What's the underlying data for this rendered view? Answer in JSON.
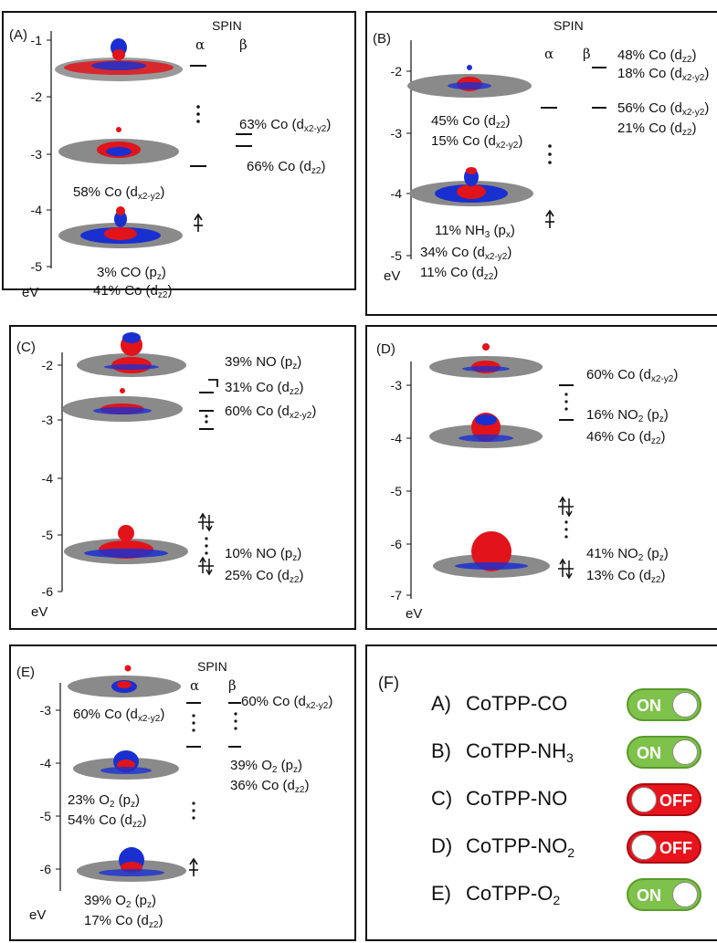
{
  "panels": {
    "A": {
      "label": "(A)",
      "spin": "SPIN",
      "alpha": "α",
      "beta": "β",
      "unit": "eV",
      "ticks": [
        "-1",
        "-2",
        "-3",
        "-4",
        "-5"
      ],
      "ann1": "63% Co (d<sub>x2-y2</sub>)",
      "ann2": "66% Co (d<sub>z2</sub>)",
      "ann3": "58% Co (d<sub>x2-y2</sub>)",
      "ann4": "3% CO (p<sub>z</sub>)",
      "ann5": "41% Co (d<sub>z2</sub>)"
    },
    "B": {
      "label": "(B)",
      "spin": "SPIN",
      "alpha": "α",
      "beta": "β",
      "unit": "eV",
      "ticks": [
        "-2",
        "-3",
        "-4",
        "-5"
      ],
      "ann1": "48% Co (d<sub>z2</sub>)",
      "ann2": "18% Co (d<sub>x2-y2</sub>)",
      "ann3": "56% Co (d<sub>x2-y2</sub>)",
      "ann4": "21% Co (d<sub>z2</sub>)",
      "ann5": "45% Co (d<sub>z2</sub>)",
      "ann6": "15% Co (d<sub>x2-y2</sub>)",
      "ann7": "11% NH<sub>3</sub> (p<sub>x</sub>)",
      "ann8": "34% Co (d<sub>x2-y2</sub>)",
      "ann9": "11% Co (d<sub>z2</sub>)"
    },
    "C": {
      "label": "(C)",
      "unit": "eV",
      "ticks": [
        "-2",
        "-3",
        "-4",
        "-5",
        "-6"
      ],
      "ann1": "39% NO (p<sub>z</sub>)",
      "ann2": "31% Co (d<sub>z2</sub>)",
      "ann3": "60% Co (d<sub>x2-y2</sub>)",
      "ann4": "10% NO (p<sub>z</sub>)",
      "ann5": "25% Co (d<sub>z2</sub>)"
    },
    "D": {
      "label": "(D)",
      "unit": "eV",
      "ticks": [
        "-3",
        "-4",
        "-5",
        "-6",
        "-7"
      ],
      "ann1": "60% Co (d<sub>x2-y2</sub>)",
      "ann2": "16% NO<sub>2</sub> (p<sub>z</sub>)",
      "ann3": "46% Co (d<sub>z2</sub>)",
      "ann4": "41% NO<sub>2</sub> (p<sub>z</sub>)",
      "ann5": "13% Co (d<sub>z2</sub>)"
    },
    "E": {
      "label": "(E)",
      "spin": "SPIN",
      "alpha": "α",
      "beta": "β",
      "unit": "eV",
      "ticks": [
        "-3",
        "-4",
        "-5",
        "-6"
      ],
      "ann1": "60% Co (d<sub>x2-y2</sub>)",
      "ann2": "60% Co (d<sub>x2-y2</sub>)",
      "ann3": "39% O<sub>2</sub> (p<sub>z</sub>)",
      "ann4": "36% Co (d<sub>z2</sub>)",
      "ann5": "23% O<sub>2</sub> (p<sub>z</sub>)",
      "ann6": "54% Co (d<sub>z2</sub>)",
      "ann7": "39% O<sub>2</sub> (p<sub>z</sub>)",
      "ann8": "17% Co (d<sub>z2</sub>)"
    },
    "F": {
      "label": "(F)",
      "rows": [
        {
          "letter": "A)",
          "name": "CoTPP-CO",
          "state": "ON",
          "color": "#7ec14b"
        },
        {
          "letter": "B)",
          "name": "CoTPP-NH<sub>3</sub>",
          "state": "ON",
          "color": "#7ec14b"
        },
        {
          "letter": "C)",
          "name": "CoTPP-NO",
          "state": "OFF",
          "color": "#e8141c"
        },
        {
          "letter": "D)",
          "name": "CoTPP-NO<sub>2</sub>",
          "state": "OFF",
          "color": "#e8141c"
        },
        {
          "letter": "E)",
          "name": "CoTPP-O<sub>2</sub>",
          "state": "ON",
          "color": "#7ec14b"
        }
      ]
    }
  },
  "colors": {
    "orbital_red": "#e0141a",
    "orbital_blue": "#1a2fd0",
    "carbon_gray": "#8a8a8a"
  }
}
